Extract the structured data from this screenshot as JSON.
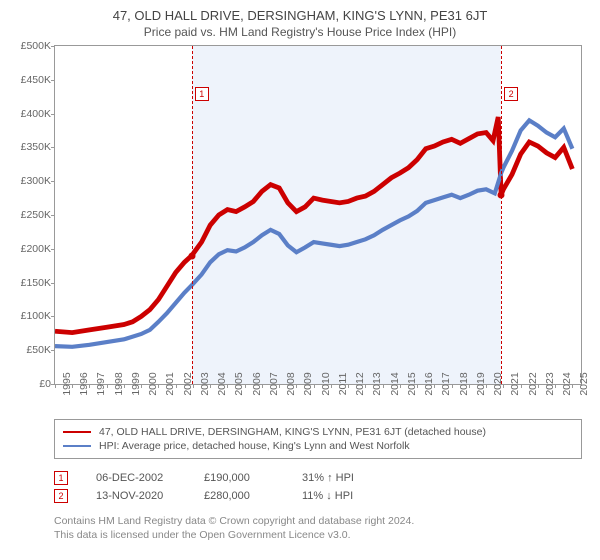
{
  "title": "47, OLD HALL DRIVE, DERSINGHAM, KING'S LYNN, PE31 6JT",
  "subtitle": "Price paid vs. HM Land Registry's House Price Index (HPI)",
  "chart": {
    "type": "line",
    "background_color": "#ffffff",
    "plot_border_color": "#999999",
    "shade_color": "#eef3fb",
    "y": {
      "min": 0,
      "max": 500000,
      "step": 50000,
      "prefix": "£",
      "suffix": "K",
      "ticks": [
        0,
        50000,
        100000,
        150000,
        200000,
        250000,
        300000,
        350000,
        400000,
        450000,
        500000
      ],
      "labels": [
        "£0",
        "£50K",
        "£100K",
        "£150K",
        "£200K",
        "£250K",
        "£300K",
        "£350K",
        "£400K",
        "£450K",
        "£500K"
      ],
      "label_fontsize": 10.5,
      "label_color": "#666666"
    },
    "x": {
      "min": 1995,
      "max": 2025.5,
      "ticks": [
        1995,
        1996,
        1997,
        1998,
        1999,
        2000,
        2001,
        2002,
        2003,
        2004,
        2005,
        2006,
        2007,
        2008,
        2009,
        2010,
        2011,
        2012,
        2013,
        2014,
        2015,
        2016,
        2017,
        2018,
        2019,
        2020,
        2021,
        2022,
        2023,
        2024,
        2025
      ],
      "label_fontsize": 10.5,
      "label_color": "#666666"
    },
    "shaded_range": {
      "x0": 2002.93,
      "x1": 2020.87
    },
    "markers": [
      {
        "idx": "1",
        "x": 2002.93,
        "box_y": 440000,
        "color": "#cc0000"
      },
      {
        "idx": "2",
        "x": 2020.87,
        "box_y": 440000,
        "color": "#cc0000"
      }
    ],
    "sale_points": [
      {
        "x": 2002.93,
        "y": 190000,
        "color": "#cc0000"
      },
      {
        "x": 2020.87,
        "y": 280000,
        "color": "#cc0000"
      }
    ],
    "series": [
      {
        "name": "property",
        "label": "47, OLD HALL DRIVE, DERSINGHAM, KING'S LYNN, PE31 6JT (detached house)",
        "color": "#cc0000",
        "line_width": 1.6,
        "data": [
          [
            1995,
            78000
          ],
          [
            1996,
            76000
          ],
          [
            1997,
            80000
          ],
          [
            1998,
            84000
          ],
          [
            1999,
            88000
          ],
          [
            1999.5,
            92000
          ],
          [
            2000,
            100000
          ],
          [
            2000.5,
            110000
          ],
          [
            2001,
            125000
          ],
          [
            2001.5,
            145000
          ],
          [
            2002,
            165000
          ],
          [
            2002.5,
            180000
          ],
          [
            2002.93,
            190000
          ],
          [
            2003.5,
            210000
          ],
          [
            2004,
            235000
          ],
          [
            2004.5,
            250000
          ],
          [
            2005,
            258000
          ],
          [
            2005.5,
            255000
          ],
          [
            2006,
            262000
          ],
          [
            2006.5,
            270000
          ],
          [
            2007,
            285000
          ],
          [
            2007.5,
            295000
          ],
          [
            2008,
            290000
          ],
          [
            2008.5,
            268000
          ],
          [
            2009,
            255000
          ],
          [
            2009.5,
            262000
          ],
          [
            2010,
            275000
          ],
          [
            2010.5,
            272000
          ],
          [
            2011,
            270000
          ],
          [
            2011.5,
            268000
          ],
          [
            2012,
            270000
          ],
          [
            2012.5,
            275000
          ],
          [
            2013,
            278000
          ],
          [
            2013.5,
            285000
          ],
          [
            2014,
            295000
          ],
          [
            2014.5,
            305000
          ],
          [
            2015,
            312000
          ],
          [
            2015.5,
            320000
          ],
          [
            2016,
            332000
          ],
          [
            2016.5,
            348000
          ],
          [
            2017,
            352000
          ],
          [
            2017.5,
            358000
          ],
          [
            2018,
            362000
          ],
          [
            2018.5,
            356000
          ],
          [
            2019,
            363000
          ],
          [
            2019.5,
            370000
          ],
          [
            2020,
            372000
          ],
          [
            2020.4,
            360000
          ],
          [
            2020.7,
            395000
          ],
          [
            2020.87,
            280000
          ],
          [
            2021,
            288000
          ],
          [
            2021.5,
            310000
          ],
          [
            2022,
            340000
          ],
          [
            2022.5,
            358000
          ],
          [
            2023,
            352000
          ],
          [
            2023.5,
            342000
          ],
          [
            2024,
            335000
          ],
          [
            2024.5,
            350000
          ],
          [
            2025,
            318000
          ]
        ]
      },
      {
        "name": "hpi",
        "label": "HPI: Average price, detached house, King's Lynn and West Norfolk",
        "color": "#5b7fc7",
        "line_width": 1.4,
        "data": [
          [
            1995,
            56000
          ],
          [
            1996,
            55000
          ],
          [
            1997,
            58000
          ],
          [
            1998,
            62000
          ],
          [
            1999,
            66000
          ],
          [
            2000,
            74000
          ],
          [
            2000.5,
            80000
          ],
          [
            2001,
            92000
          ],
          [
            2001.5,
            105000
          ],
          [
            2002,
            120000
          ],
          [
            2002.5,
            135000
          ],
          [
            2003,
            148000
          ],
          [
            2003.5,
            162000
          ],
          [
            2004,
            180000
          ],
          [
            2004.5,
            192000
          ],
          [
            2005,
            198000
          ],
          [
            2005.5,
            196000
          ],
          [
            2006,
            202000
          ],
          [
            2006.5,
            210000
          ],
          [
            2007,
            220000
          ],
          [
            2007.5,
            228000
          ],
          [
            2008,
            222000
          ],
          [
            2008.5,
            205000
          ],
          [
            2009,
            195000
          ],
          [
            2009.5,
            202000
          ],
          [
            2010,
            210000
          ],
          [
            2010.5,
            208000
          ],
          [
            2011,
            206000
          ],
          [
            2011.5,
            204000
          ],
          [
            2012,
            206000
          ],
          [
            2012.5,
            210000
          ],
          [
            2013,
            214000
          ],
          [
            2013.5,
            220000
          ],
          [
            2014,
            228000
          ],
          [
            2014.5,
            235000
          ],
          [
            2015,
            242000
          ],
          [
            2015.5,
            248000
          ],
          [
            2016,
            256000
          ],
          [
            2016.5,
            268000
          ],
          [
            2017,
            272000
          ],
          [
            2017.5,
            276000
          ],
          [
            2018,
            280000
          ],
          [
            2018.5,
            275000
          ],
          [
            2019,
            280000
          ],
          [
            2019.5,
            286000
          ],
          [
            2020,
            288000
          ],
          [
            2020.5,
            282000
          ],
          [
            2020.87,
            312000
          ],
          [
            2021,
            320000
          ],
          [
            2021.5,
            345000
          ],
          [
            2022,
            375000
          ],
          [
            2022.5,
            390000
          ],
          [
            2023,
            382000
          ],
          [
            2023.5,
            372000
          ],
          [
            2024,
            365000
          ],
          [
            2024.5,
            378000
          ],
          [
            2025,
            348000
          ]
        ]
      }
    ]
  },
  "legend": {
    "border_color": "#999999",
    "fontsize": 10.5
  },
  "sales": [
    {
      "idx": "1",
      "date": "06-DEC-2002",
      "price": "£190,000",
      "hpi": "31% ↑ HPI",
      "color": "#cc0000"
    },
    {
      "idx": "2",
      "date": "13-NOV-2020",
      "price": "£280,000",
      "hpi": "11% ↓ HPI",
      "color": "#cc0000"
    }
  ],
  "footer": {
    "line1": "Contains HM Land Registry data © Crown copyright and database right 2024.",
    "line2": "This data is licensed under the Open Government Licence v3.0."
  }
}
